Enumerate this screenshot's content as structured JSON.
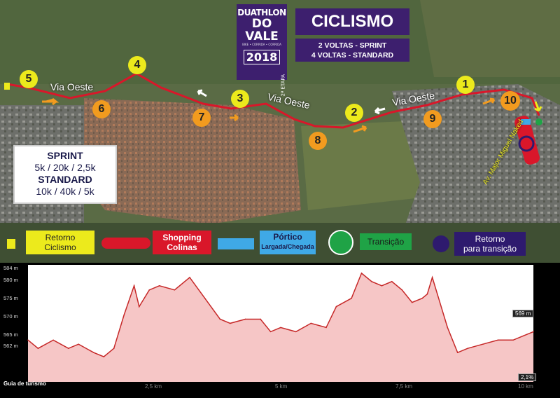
{
  "logo": {
    "line1": "DUATHLON",
    "line2": "DO VALE",
    "tagline": "BIKE • CORRIDA • CORRIDA",
    "year": "2018",
    "stage": "2ª ETAPA"
  },
  "title": "CICLISMO",
  "laps": [
    "2 VOLTAS - SPRINT",
    "4 VOLTAS - STANDARD"
  ],
  "distances": {
    "sprint_label": "SPRINT",
    "sprint": "5k / 20k / 2,5k",
    "standard_label": "STANDARD",
    "standard": "10k / 40k / 5k"
  },
  "roads": {
    "via_oeste": "Via Oeste",
    "avenue": "Av. Major Miguel Naked"
  },
  "markers": {
    "yellow": [
      "1",
      "2",
      "3",
      "4",
      "5"
    ],
    "orange": [
      "6",
      "7",
      "8",
      "9",
      "10"
    ]
  },
  "legend": {
    "retorno_ciclismo": "Retorno\nCiclismo",
    "shopping": "Shopping\nColinas",
    "portico_title": "Pórtico",
    "portico_sub": "Largada/Chegada",
    "transicao": "Transição",
    "retorno_transicao": "Retorno\npara transição"
  },
  "colors": {
    "route": "#d9172a",
    "yellow": "#ecea1c",
    "orange": "#f29b1f",
    "purple": "#3d1f6e",
    "portico": "#3fa9e6",
    "transicao": "#1fa346",
    "retorno_transicao": "#2e1a6e"
  },
  "profile": {
    "y_ticks": [
      "584 m",
      "580 m",
      "575 m",
      "570 m",
      "565 m",
      "562 m"
    ],
    "x_ticks": [
      "2,5 km",
      "5 km",
      "7,5 km",
      "10 km"
    ],
    "current_elevation": "569 m",
    "grade": "2,1%",
    "footer": "Guia de turismo"
  },
  "chart_data": {
    "type": "area",
    "title": "",
    "xlabel": "",
    "ylabel": "",
    "x_unit": "km",
    "y_unit": "m",
    "xlim": [
      0,
      10
    ],
    "ylim": [
      560,
      585
    ],
    "x": [
      0,
      0.2,
      0.5,
      0.8,
      1.0,
      1.3,
      1.5,
      1.7,
      1.9,
      2.1,
      2.2,
      2.4,
      2.6,
      2.9,
      3.2,
      3.5,
      3.8,
      4.0,
      4.3,
      4.6,
      4.8,
      5.0,
      5.3,
      5.6,
      5.9,
      6.1,
      6.4,
      6.6,
      6.8,
      7.0,
      7.2,
      7.4,
      7.6,
      7.8,
      7.9,
      8.0,
      8.1,
      8.3,
      8.5,
      8.7,
      9.0,
      9.3,
      9.6,
      9.8,
      10
    ],
    "y": [
      567,
      565,
      567,
      565,
      566,
      564,
      563,
      565,
      573,
      580,
      575,
      579,
      580,
      579,
      582,
      577,
      572,
      571,
      572,
      572,
      569,
      570,
      569,
      571,
      570,
      575,
      577,
      583,
      581,
      580,
      581,
      579,
      576,
      577,
      578,
      582,
      578,
      570,
      564,
      565,
      566,
      567,
      567,
      568,
      569
    ]
  }
}
